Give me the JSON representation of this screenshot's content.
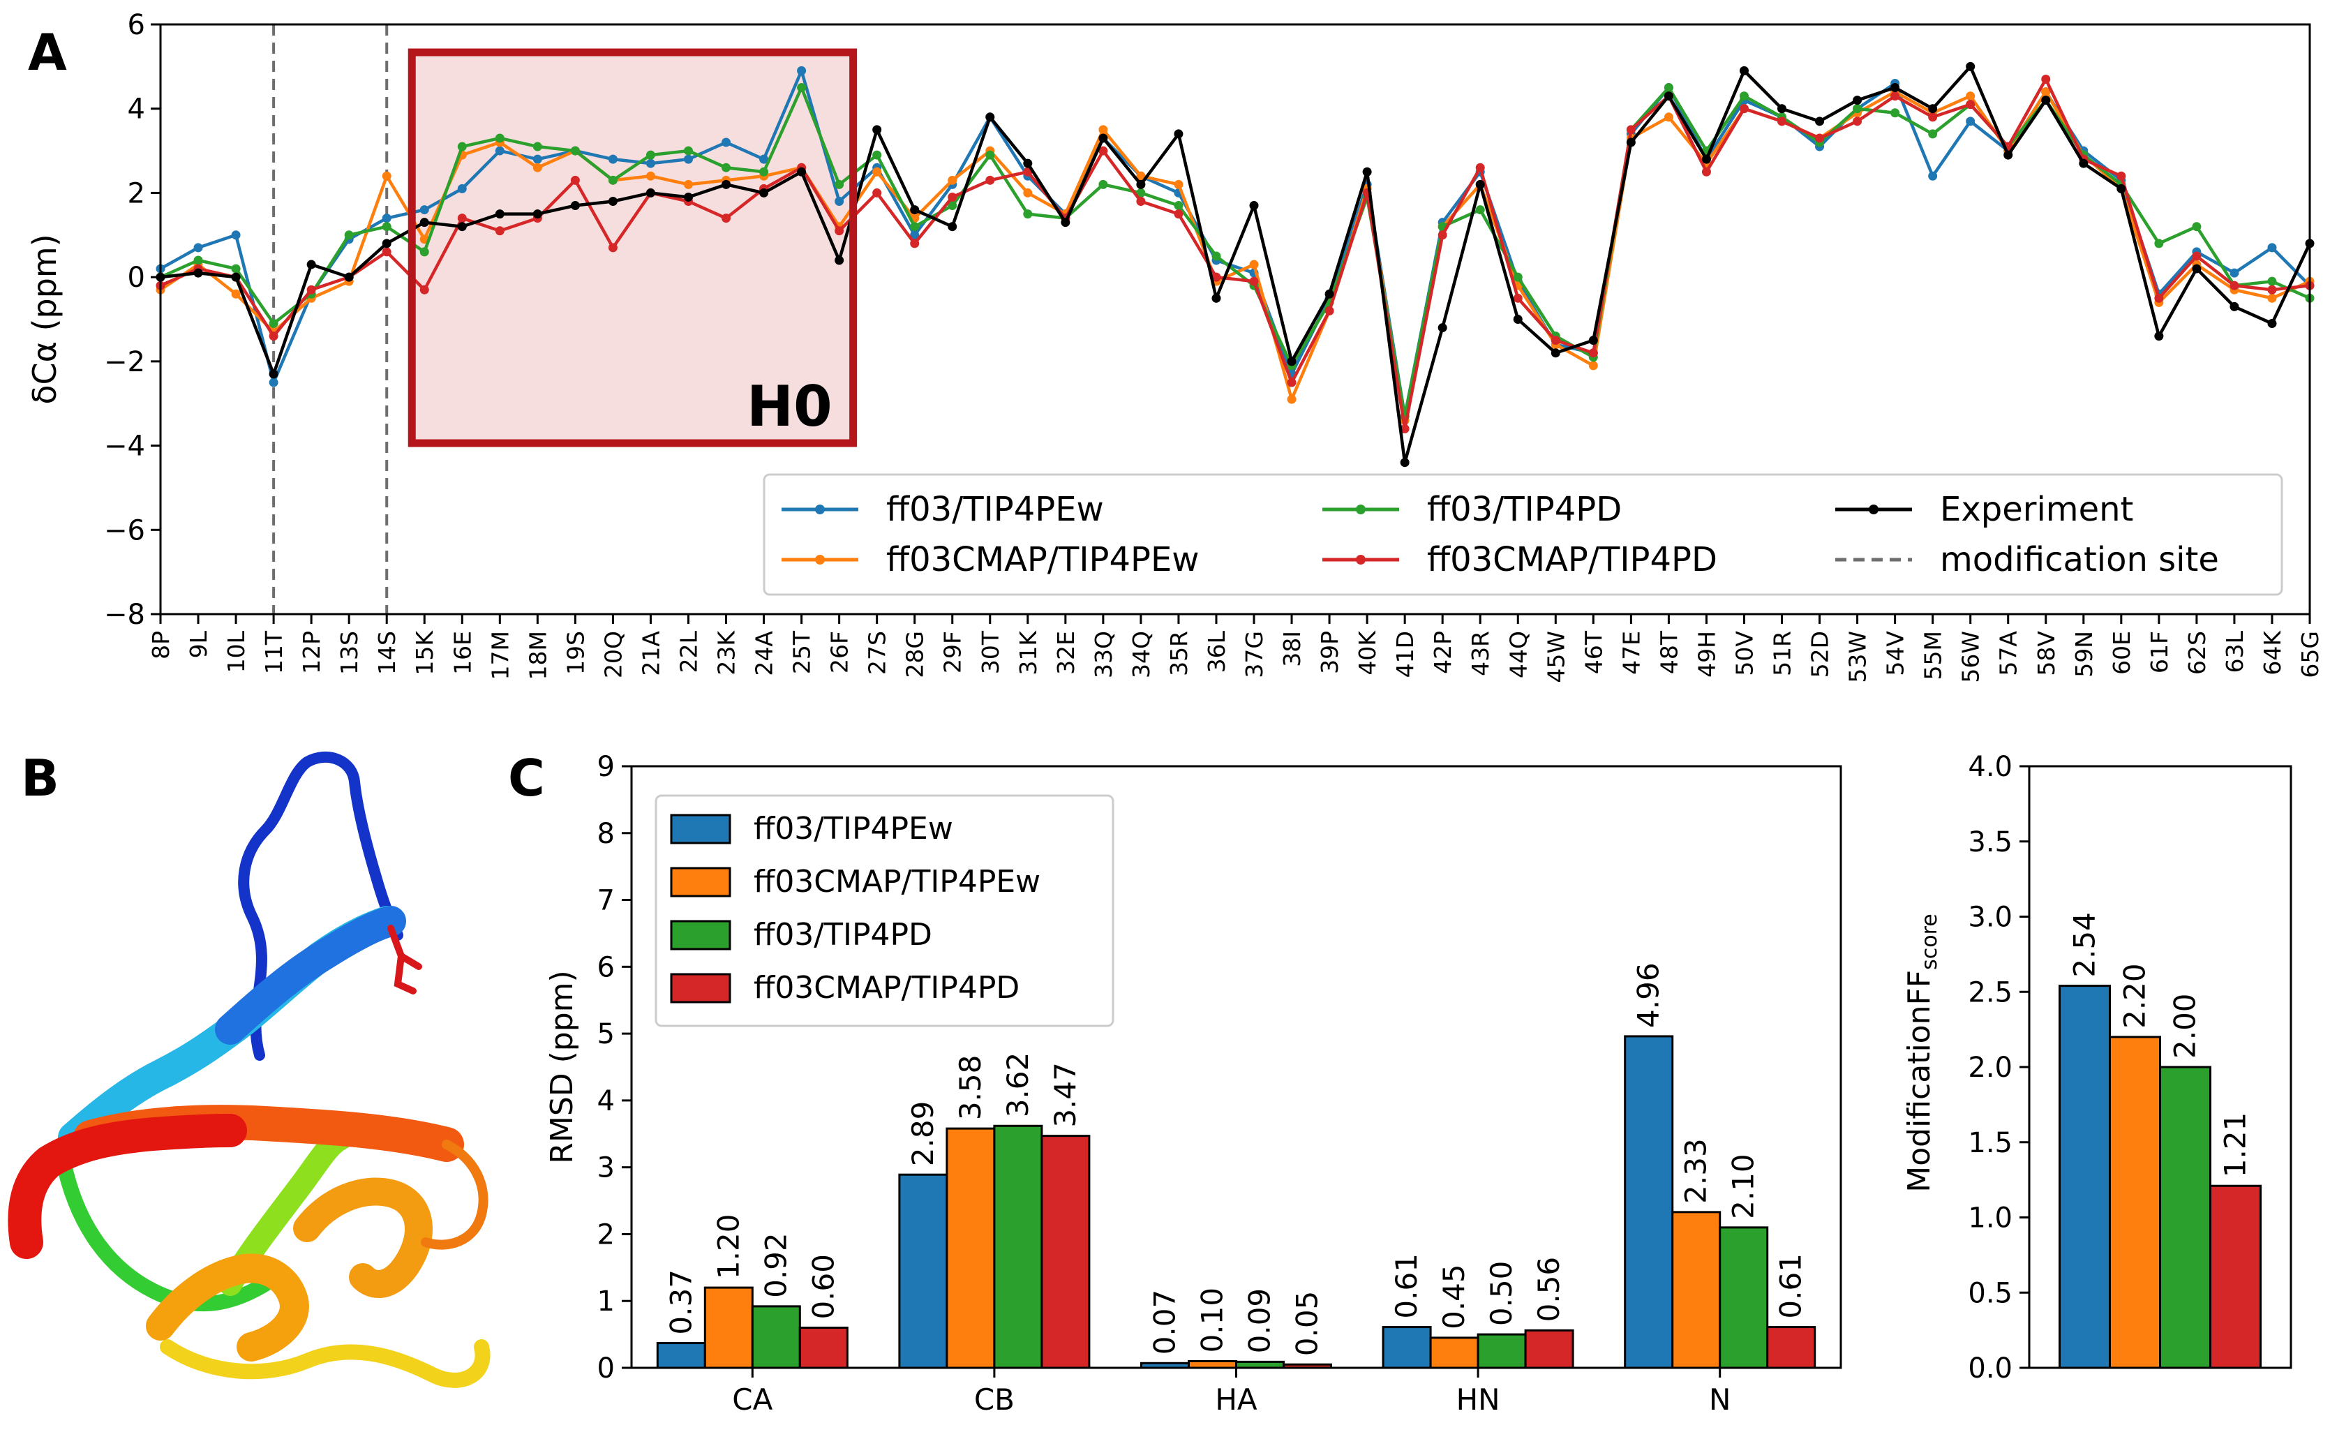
{
  "panel_labels": {
    "a": "A",
    "b": "B",
    "c": "C"
  },
  "colors": {
    "ff03_tip4pew": "#1f77b4",
    "ff03cmap_tip4pew": "#ff7f0e",
    "ff03_tip4pd": "#2ca02c",
    "ff03cmap_tip4pd": "#d62728",
    "experiment": "#000000",
    "h0_box": "#b5161b",
    "h0_fill": "#f7dede",
    "modification_line": "#6e6e6e"
  },
  "chart_data": [
    {
      "id": "panel-a",
      "type": "line",
      "ylabel": "δCα (ppm)",
      "xlabel": "",
      "ylim": [
        -8,
        6
      ],
      "yticks": [
        "6",
        "4",
        "2",
        "0",
        "−2",
        "−4",
        "−6",
        "−8"
      ],
      "ytick_values": [
        6,
        4,
        2,
        0,
        -2,
        -4,
        -6,
        -8
      ],
      "categories": [
        "8P",
        "9L",
        "10L",
        "11T",
        "12P",
        "13S",
        "14S",
        "15K",
        "16E",
        "17M",
        "18M",
        "19S",
        "20Q",
        "21A",
        "22L",
        "23K",
        "24A",
        "25T",
        "26F",
        "27S",
        "28G",
        "29F",
        "30T",
        "31K",
        "32E",
        "33Q",
        "34Q",
        "35R",
        "36L",
        "37G",
        "38I",
        "39P",
        "40K",
        "41D",
        "42P",
        "43R",
        "44Q",
        "45W",
        "46T",
        "47E",
        "48T",
        "49H",
        "50V",
        "51R",
        "52D",
        "53W",
        "54V",
        "55M",
        "56W",
        "57A",
        "58V",
        "59N",
        "60E",
        "61F",
        "62S",
        "63L",
        "64K",
        "65G"
      ],
      "modification_sites": [
        "11T",
        "14S"
      ],
      "annotation": {
        "label": "H0",
        "from": "15K",
        "to": "26F"
      },
      "legend_placement": "lower-right",
      "series": [
        {
          "name": "ff03/TIP4PEw",
          "color_key": "ff03_tip4pew",
          "values": [
            0.2,
            0.7,
            1.0,
            -2.5,
            -0.4,
            0.9,
            1.4,
            1.6,
            2.1,
            3.0,
            2.8,
            3.0,
            2.8,
            2.7,
            2.8,
            3.2,
            2.8,
            4.9,
            1.8,
            2.6,
            1.0,
            2.2,
            3.8,
            2.4,
            1.5,
            3.3,
            2.4,
            2.0,
            0.4,
            0.1,
            -2.3,
            -0.5,
            2.2,
            -3.3,
            1.3,
            2.5,
            -0.1,
            -1.6,
            -1.8,
            3.4,
            4.5,
            2.8,
            4.2,
            3.8,
            3.1,
            4.0,
            4.6,
            2.4,
            3.7,
            3.0,
            4.4,
            3.0,
            2.3,
            -0.4,
            0.6,
            0.1,
            0.7,
            -0.2
          ]
        },
        {
          "name": "ff03CMAP/TIP4PEw",
          "color_key": "ff03cmap_tip4pew",
          "values": [
            -0.3,
            0.3,
            -0.4,
            -1.3,
            -0.5,
            -0.1,
            2.4,
            0.9,
            2.9,
            3.2,
            2.6,
            3.0,
            2.3,
            2.4,
            2.2,
            2.3,
            2.4,
            2.6,
            1.2,
            2.5,
            1.4,
            2.3,
            3.0,
            2.0,
            1.5,
            3.5,
            2.4,
            2.2,
            -0.1,
            0.3,
            -2.9,
            -0.8,
            2.1,
            -3.4,
            1.2,
            2.2,
            -0.2,
            -1.6,
            -2.1,
            3.3,
            3.8,
            2.7,
            4.0,
            3.7,
            3.3,
            3.9,
            4.4,
            3.9,
            4.3,
            3.0,
            4.4,
            2.9,
            2.1,
            -0.6,
            0.3,
            -0.3,
            -0.5,
            -0.1
          ]
        },
        {
          "name": "ff03/TIP4PD",
          "color_key": "ff03_tip4pd",
          "values": [
            0.0,
            0.4,
            0.2,
            -1.1,
            -0.4,
            1.0,
            1.2,
            0.6,
            3.1,
            3.3,
            3.1,
            3.0,
            2.3,
            2.9,
            3.0,
            2.6,
            2.5,
            4.5,
            2.2,
            2.9,
            1.2,
            1.7,
            2.9,
            1.5,
            1.4,
            2.2,
            2.0,
            1.7,
            0.5,
            -0.2,
            -2.1,
            -0.6,
            1.9,
            -3.3,
            1.2,
            1.6,
            0.0,
            -1.4,
            -1.9,
            3.5,
            4.5,
            3.0,
            4.3,
            3.8,
            3.2,
            4.0,
            3.9,
            3.4,
            4.1,
            3.1,
            4.2,
            2.9,
            2.2,
            0.8,
            1.2,
            -0.2,
            -0.1,
            -0.5
          ]
        },
        {
          "name": "ff03CMAP/TIP4PD",
          "color_key": "ff03cmap_tip4pd",
          "values": [
            -0.2,
            0.2,
            0.0,
            -1.4,
            -0.3,
            0.0,
            0.6,
            -0.3,
            1.4,
            1.1,
            1.4,
            2.3,
            0.7,
            2.0,
            1.8,
            1.4,
            2.1,
            2.6,
            1.1,
            2.0,
            0.8,
            1.9,
            2.3,
            2.5,
            1.4,
            3.0,
            1.8,
            1.5,
            0.0,
            -0.1,
            -2.5,
            -0.8,
            2.0,
            -3.6,
            1.0,
            2.6,
            -0.5,
            -1.5,
            -1.8,
            3.5,
            4.3,
            2.5,
            4.0,
            3.7,
            3.3,
            3.7,
            4.3,
            3.8,
            4.1,
            3.1,
            4.7,
            2.8,
            2.4,
            -0.5,
            0.5,
            -0.2,
            -0.3,
            -0.2
          ]
        },
        {
          "name": "Experiment",
          "color_key": "experiment",
          "values": [
            0.0,
            0.1,
            0.0,
            -2.3,
            0.3,
            0.0,
            0.8,
            1.3,
            1.2,
            1.5,
            1.5,
            1.7,
            1.8,
            2.0,
            1.9,
            2.2,
            2.0,
            2.5,
            0.4,
            3.5,
            1.6,
            1.2,
            3.8,
            2.7,
            1.3,
            3.3,
            2.2,
            3.4,
            -0.5,
            1.7,
            -2.0,
            -0.4,
            2.5,
            -4.4,
            -1.2,
            2.2,
            -1.0,
            -1.8,
            -1.5,
            3.2,
            4.3,
            2.8,
            4.9,
            4.0,
            3.7,
            4.2,
            4.5,
            4.0,
            5.0,
            2.9,
            4.2,
            2.7,
            2.1,
            -1.4,
            0.2,
            -0.7,
            -1.1,
            0.8
          ]
        }
      ],
      "legend_extra": "modification site"
    },
    {
      "id": "panel-c-rmsd",
      "type": "bar",
      "ylabel": "RMSD (ppm)",
      "xlabel": "",
      "ylim": [
        0,
        9
      ],
      "yticks": [
        "0",
        "1",
        "2",
        "3",
        "4",
        "5",
        "6",
        "7",
        "8",
        "9"
      ],
      "ytick_values": [
        0,
        1,
        2,
        3,
        4,
        5,
        6,
        7,
        8,
        9
      ],
      "categories": [
        "CA",
        "CB",
        "HA",
        "HN",
        "N"
      ],
      "legend_placement": "top-left",
      "series": [
        {
          "name": "ff03/TIP4PEw",
          "color_key": "ff03_tip4pew",
          "values": [
            0.37,
            2.89,
            0.07,
            0.61,
            4.96
          ],
          "labels": [
            "0.37",
            "2.89",
            "0.07",
            "0.61",
            "4.96"
          ]
        },
        {
          "name": "ff03CMAP/TIP4PEw",
          "color_key": "ff03cmap_tip4pew",
          "values": [
            1.2,
            3.58,
            0.1,
            0.45,
            2.33
          ],
          "labels": [
            "1.20",
            "3.58",
            "0.10",
            "0.45",
            "2.33"
          ]
        },
        {
          "name": "ff03/TIP4PD",
          "color_key": "ff03_tip4pd",
          "values": [
            0.92,
            3.62,
            0.09,
            0.5,
            2.1
          ],
          "labels": [
            "0.92",
            "3.62",
            "0.09",
            "0.50",
            "2.10"
          ]
        },
        {
          "name": "ff03CMAP/TIP4PD",
          "color_key": "ff03cmap_tip4pd",
          "values": [
            0.6,
            3.47,
            0.05,
            0.56,
            0.61
          ],
          "labels": [
            "0.60",
            "3.47",
            "0.05",
            "0.56",
            "0.61"
          ]
        }
      ]
    },
    {
      "id": "panel-c-score",
      "type": "bar",
      "ylabel": "ModificationFF",
      "ylabel_sub": "score",
      "xlabel": "",
      "ylim": [
        0,
        4
      ],
      "yticks": [
        "0.0",
        "0.5",
        "1.0",
        "1.5",
        "2.0",
        "2.5",
        "3.0",
        "3.5",
        "4.0"
      ],
      "ytick_values": [
        0,
        0.5,
        1.0,
        1.5,
        2.0,
        2.5,
        3.0,
        3.5,
        4.0
      ],
      "series": [
        {
          "color_key": "ff03_tip4pew",
          "value": 2.54,
          "label": "2.54"
        },
        {
          "color_key": "ff03cmap_tip4pew",
          "value": 2.2,
          "label": "2.20"
        },
        {
          "color_key": "ff03_tip4pd",
          "value": 2.0,
          "label": "2.00"
        },
        {
          "color_key": "ff03cmap_tip4pd",
          "value": 1.21,
          "label": "1.21"
        }
      ]
    }
  ]
}
